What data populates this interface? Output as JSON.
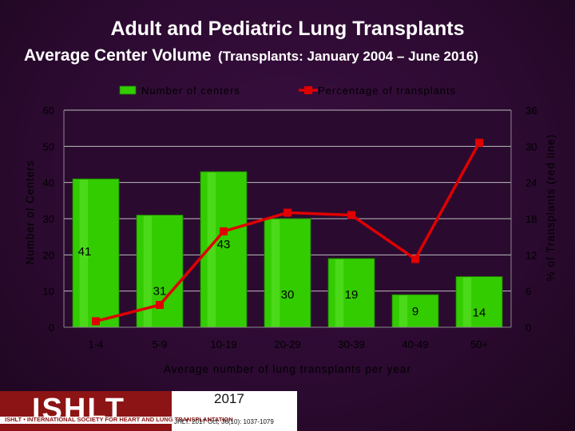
{
  "title": "Adult and Pediatric Lung Transplants",
  "subtitle_main": "Average Center Volume",
  "subtitle_paren": "(Transplants: January 2004 – June 2016)",
  "logo": {
    "name": "ISHLT",
    "tagline": "ISHLT • INTERNATIONAL SOCIETY FOR HEART AND LUNG TRANSPLANTATION",
    "year": "2017",
    "citation": "JHLT. 2017 Oct; 36(10): 1037-1079"
  },
  "colors": {
    "bar": "#33cc00",
    "line": "#e00000",
    "text": "#000000",
    "plot_background": "#2b0a30"
  },
  "chart_data": {
    "type": "bar",
    "categories": [
      "1-4",
      "5-9",
      "10-19",
      "20-29",
      "30-39",
      "40-49",
      "50+"
    ],
    "series": [
      {
        "name": "Number of centers",
        "type": "bar",
        "axis": "left",
        "values": [
          41,
          31,
          43,
          30,
          19,
          9,
          14
        ],
        "data_labels": [
          "41",
          "31",
          "43",
          "30",
          "19",
          "9",
          "14"
        ]
      },
      {
        "name": "Percentage of transplants",
        "type": "line",
        "axis": "right",
        "values": [
          1.0,
          3.7,
          15.9,
          19.0,
          18.6,
          11.3,
          30.6
        ]
      }
    ],
    "xlabel": "Average number of lung transplants per year",
    "ylabel": "Number of Centers",
    "y2label": "% of Transplants (red line)",
    "ylim": [
      0,
      60
    ],
    "y2lim": [
      0,
      36
    ],
    "yticks": [
      "0",
      "10",
      "20",
      "30",
      "40",
      "50",
      "60"
    ],
    "y2ticks": [
      "0",
      "6",
      "12",
      "18",
      "24",
      "30",
      "36"
    ],
    "legend_position": "top",
    "grid": true
  }
}
